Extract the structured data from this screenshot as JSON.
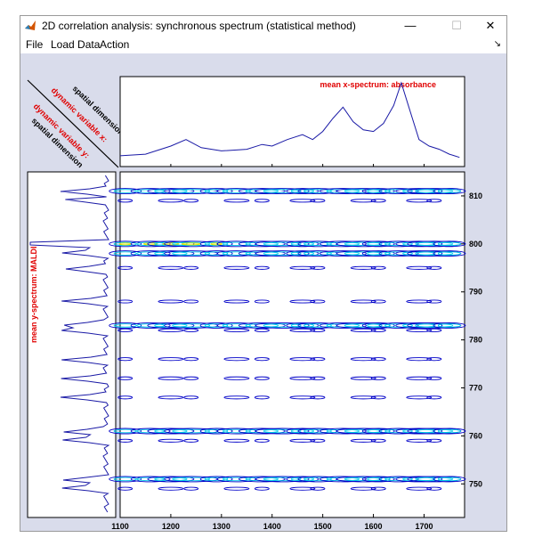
{
  "window": {
    "title": "2D correlation analysis: synchronous spectrum (statistical method)",
    "minimize_glyph": "—",
    "maximize_glyph": "☐",
    "close_glyph": "✕",
    "dock_glyph": "↘"
  },
  "menu": {
    "items": [
      "File",
      "Load Data",
      "Action"
    ]
  },
  "plot": {
    "corner_labels": {
      "spatial_x": "spatial dimension",
      "dynamic_x": "dynamic variable x:",
      "dynamic_y": "dynamic variable y:",
      "spatial_y": "spatial dimension"
    },
    "top_title": "mean x-spectrum: absorbance",
    "left_title": "mean y-spectrum: MALDI",
    "x_ticks": [
      "1100",
      "1200",
      "1300",
      "1400",
      "1500",
      "1600",
      "1700"
    ],
    "y_ticks": [
      "810",
      "800",
      "790",
      "780",
      "770",
      "760",
      "750"
    ],
    "colors": {
      "label_red": "#e00000",
      "spectrum": "#1a1aa6",
      "contour_dark": "#0000c8",
      "contour_mid": "#1e90ff",
      "contour_cyan": "#00c8e6",
      "contour_yellow": "#e6e600",
      "background": "#d9dceb"
    }
  },
  "chart_data": [
    {
      "type": "line",
      "title": "mean x-spectrum: absorbance",
      "x": [
        1100,
        1150,
        1200,
        1230,
        1260,
        1300,
        1350,
        1380,
        1400,
        1430,
        1460,
        1480,
        1500,
        1520,
        1540,
        1560,
        1580,
        1600,
        1620,
        1640,
        1655,
        1670,
        1690,
        1710,
        1730,
        1750,
        1770
      ],
      "values": [
        0.1,
        0.12,
        0.22,
        0.3,
        0.2,
        0.16,
        0.18,
        0.24,
        0.22,
        0.3,
        0.36,
        0.3,
        0.4,
        0.56,
        0.7,
        0.52,
        0.42,
        0.4,
        0.5,
        0.72,
        1.0,
        0.7,
        0.3,
        0.22,
        0.18,
        0.12,
        0.08
      ],
      "xlim": [
        1100,
        1780
      ]
    },
    {
      "type": "heatmap",
      "x_range": [
        1100,
        1780
      ],
      "y_range": [
        743,
        815
      ],
      "x_ticks": [
        1100,
        1200,
        1300,
        1400,
        1500,
        1600,
        1700
      ],
      "y_ticks": [
        810,
        800,
        790,
        780,
        770,
        760,
        750
      ],
      "bands_y": [
        811,
        809,
        800,
        798,
        795,
        788,
        783,
        782,
        776,
        772,
        768,
        761,
        759,
        751,
        749
      ]
    }
  ]
}
